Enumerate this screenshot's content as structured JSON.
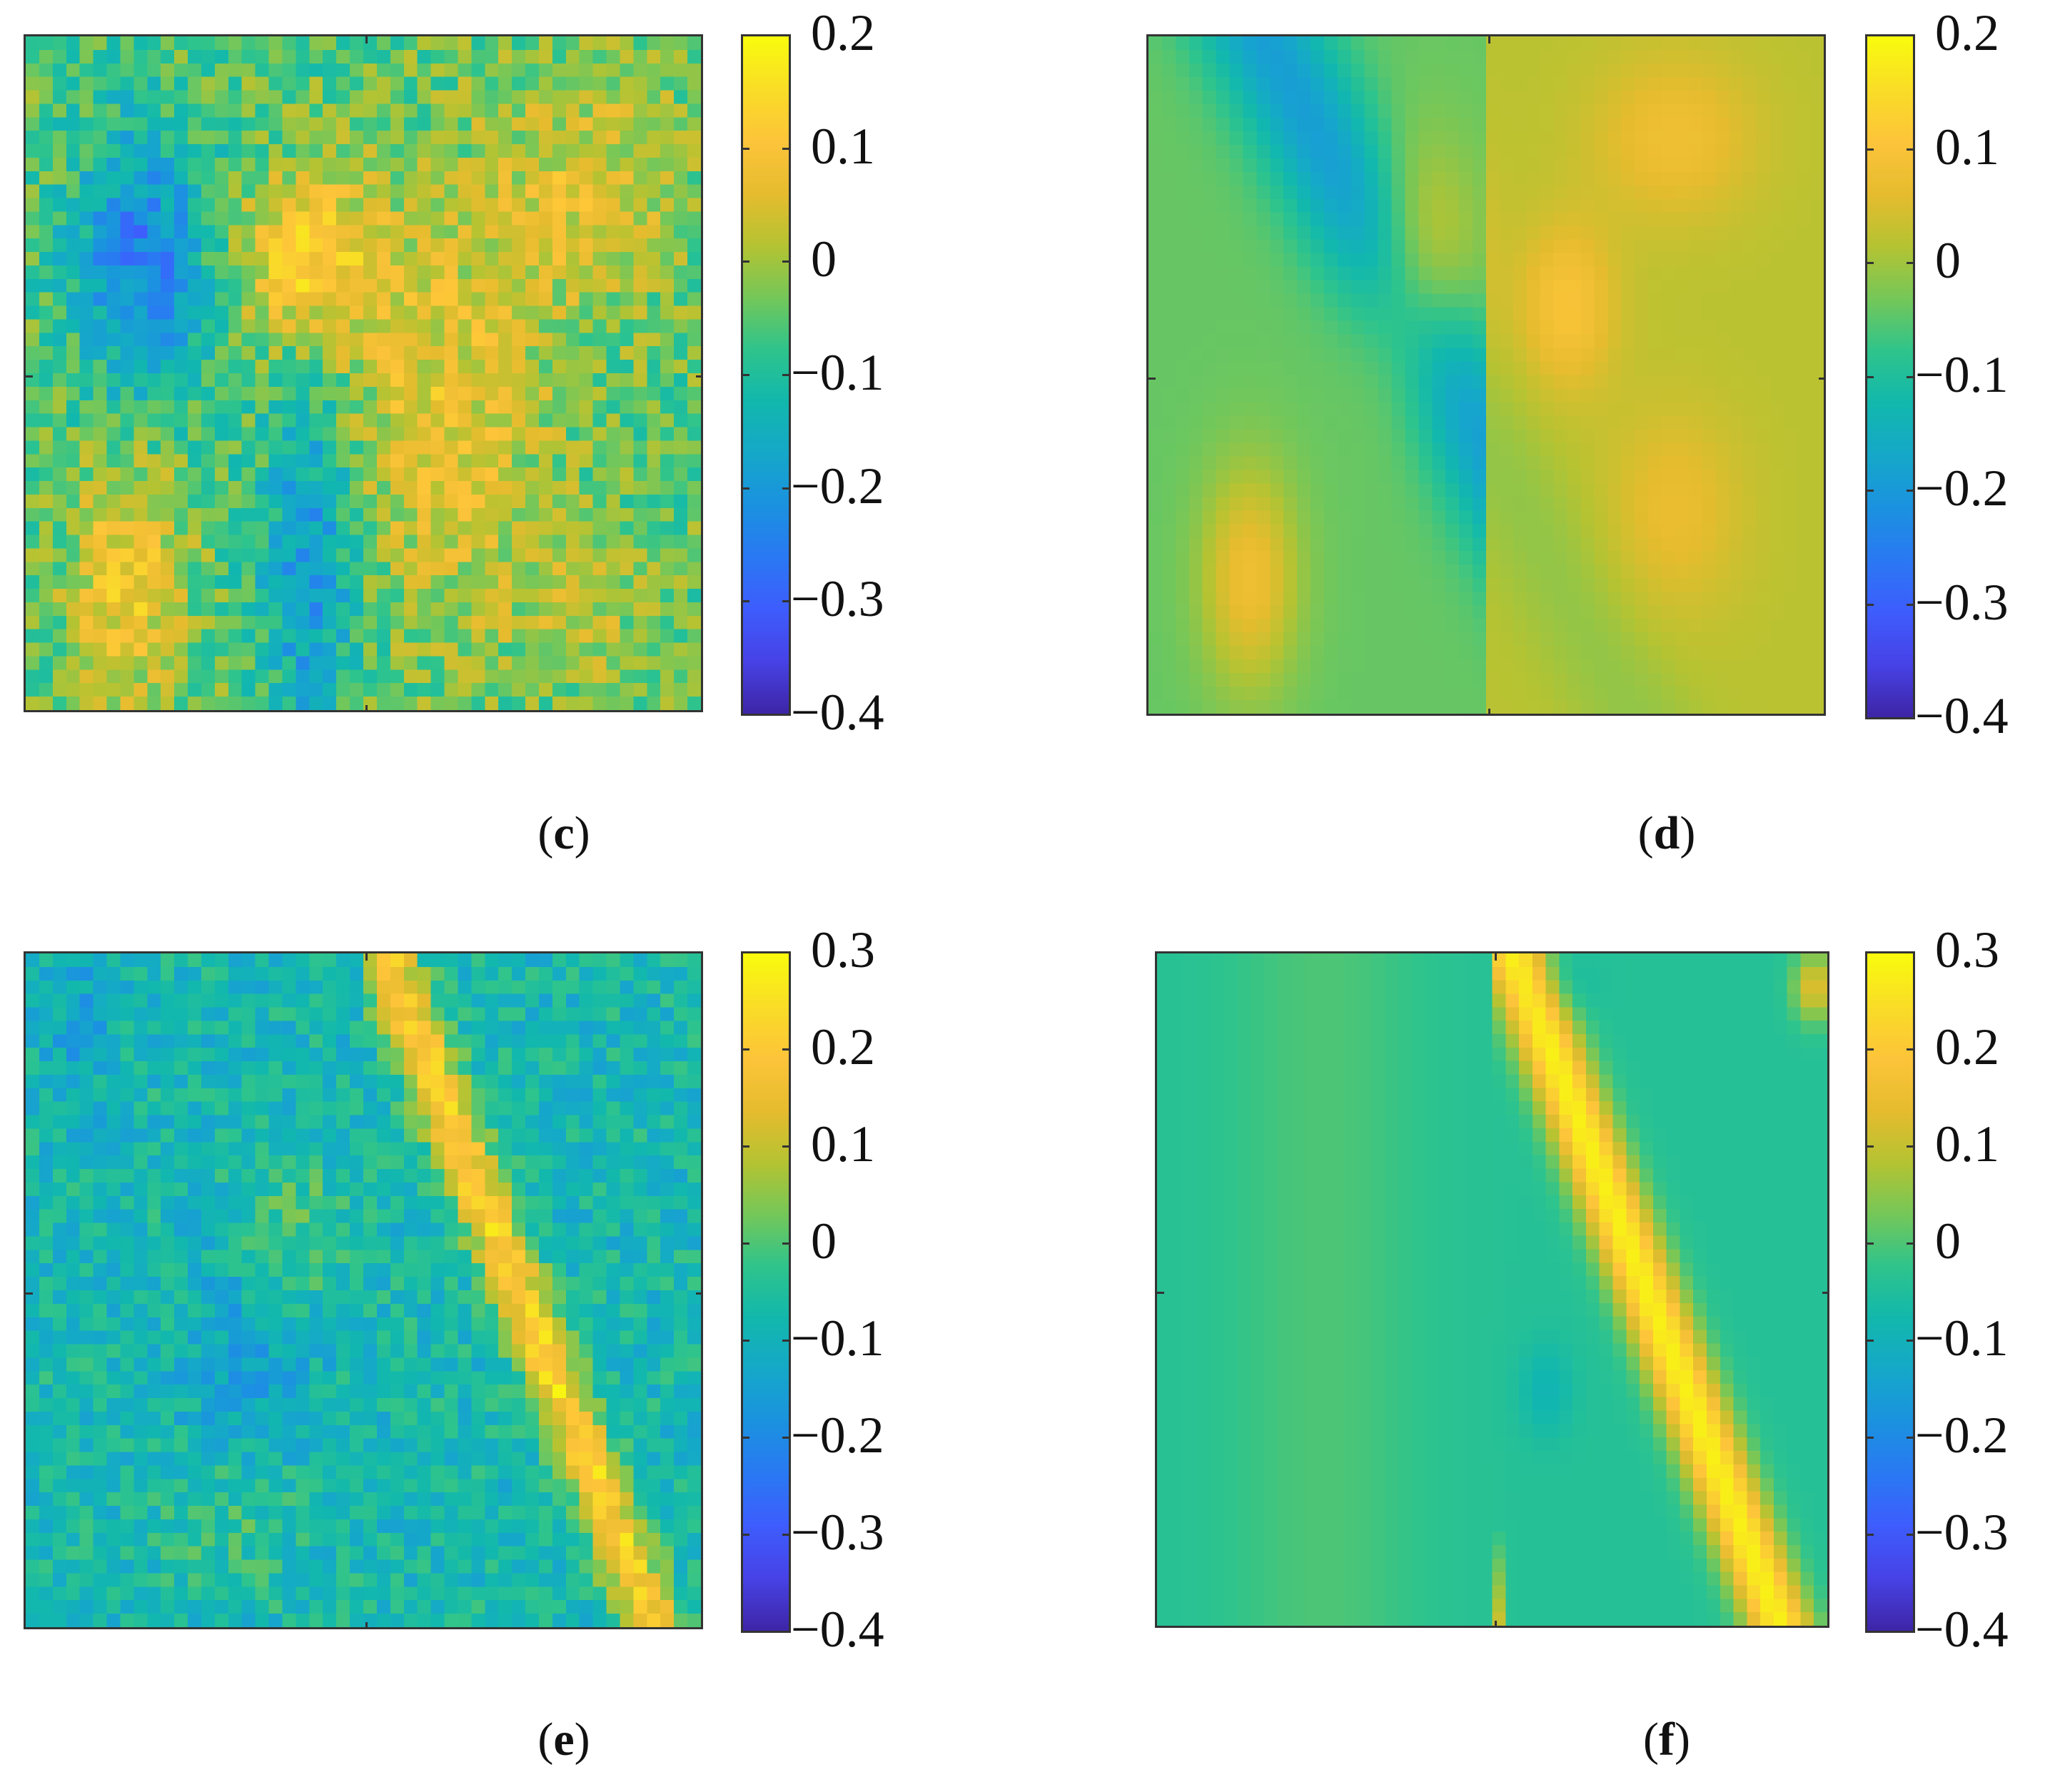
{
  "colormap": [
    "#3e26a8",
    "#4743e7",
    "#3e5dfd",
    "#2a79f3",
    "#1b92e0",
    "#15a8c9",
    "#12b8ad",
    "#2fc48c",
    "#75c759",
    "#b5c332",
    "#e6bc2e",
    "#fdc43a",
    "#f9dd27",
    "#f9fb0e"
  ],
  "chart_data": [
    {
      "id": "c",
      "type": "heatmap",
      "caption": "c",
      "pattern": "noisy",
      "seed": 11,
      "grid": [
        50,
        50
      ],
      "clim": [
        -0.4,
        0.2
      ],
      "colorbar_ticks": [
        0.2,
        0.1,
        0,
        -0.1,
        -0.2,
        -0.3,
        -0.4
      ],
      "colorbar_labels": [
        "0.2",
        "0.1",
        "0",
        "−0.1",
        "−0.2",
        "−0.3",
        "−0.4"
      ]
    },
    {
      "id": "d",
      "type": "heatmap",
      "caption": "d",
      "pattern": "smooth",
      "seed": 11,
      "grid": [
        50,
        50
      ],
      "clim": [
        -0.4,
        0.2
      ],
      "colorbar_ticks": [
        0.2,
        0.1,
        0,
        -0.1,
        -0.2,
        -0.3,
        -0.4
      ],
      "colorbar_labels": [
        "0.2",
        "0.1",
        "0",
        "−0.1",
        "−0.2",
        "−0.3",
        "−0.4"
      ]
    },
    {
      "id": "e",
      "type": "heatmap",
      "caption": "e",
      "pattern": "noisy-band",
      "seed": 29,
      "grid": [
        50,
        50
      ],
      "clim": [
        -0.4,
        0.3
      ],
      "colorbar_ticks": [
        0.3,
        0.2,
        0.1,
        0,
        -0.1,
        -0.2,
        -0.3,
        -0.4
      ],
      "colorbar_labels": [
        "0.3",
        "0.2",
        "0.1",
        "0",
        "−0.1",
        "−0.2",
        "−0.3",
        "−0.4"
      ]
    },
    {
      "id": "f",
      "type": "heatmap",
      "caption": "f",
      "pattern": "smooth-band",
      "seed": 29,
      "grid": [
        50,
        50
      ],
      "clim": [
        -0.4,
        0.3
      ],
      "colorbar_ticks": [
        0.3,
        0.2,
        0.1,
        0,
        -0.1,
        -0.2,
        -0.3,
        -0.4
      ],
      "colorbar_labels": [
        "0.3",
        "0.2",
        "0.1",
        "0",
        "−0.1",
        "−0.2",
        "−0.3",
        "−0.4"
      ]
    }
  ]
}
